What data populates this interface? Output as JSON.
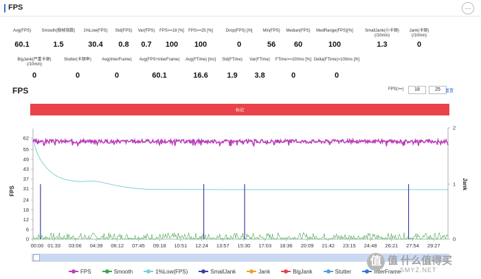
{
  "header": {
    "title": "FPS",
    "menu_icon": "dots-menu-icon"
  },
  "stats_row1": [
    {
      "label": "Avg(FPS)",
      "value": "60.1"
    },
    {
      "label": "Smooth(稳帧指数)",
      "value": "1.5"
    },
    {
      "label": "1%Low(FPS)",
      "value": "30.4"
    },
    {
      "label": "Std(FPS)",
      "value": "0.8"
    },
    {
      "label": "Var(FPS)",
      "value": "0.7"
    },
    {
      "label": "FPS>=18 [%]",
      "value": "100"
    },
    {
      "label": "FPS>=25 [%]",
      "value": "100"
    },
    {
      "label": "Drop(FPS) [/h]",
      "value": "0"
    },
    {
      "label": "Min(FPS)",
      "value": "56"
    },
    {
      "label": "Median(FPS)",
      "value": "60"
    },
    {
      "label": "MedRange(FPS)[%]",
      "value": "100"
    },
    {
      "label": "SmallJank(小卡顿)\n(/10min)",
      "value": "1.3"
    },
    {
      "label": "Jank(卡顿)\n(/10min)",
      "value": "0"
    }
  ],
  "stats_row2": [
    {
      "label": "BigJank(严重卡顿)\n(/10min)",
      "value": "0"
    },
    {
      "label": "Stutter(卡顿率)",
      "value": "0"
    },
    {
      "label": "Avg(InterFrame)",
      "value": "0"
    },
    {
      "label": "Avg(FPS+InterFrame)",
      "value": "60.1"
    },
    {
      "label": "Avg(FTime) [ms]",
      "value": "16.6"
    },
    {
      "label": "Std(FTime)",
      "value": "1.9"
    },
    {
      "label": "Var(FTime)",
      "value": "3.8"
    },
    {
      "label": "FTime>=100ms [%]",
      "value": "0"
    },
    {
      "label": "Delta(FTime)>100ms [/h]",
      "value": "0"
    }
  ],
  "chart_section": {
    "title": "FPS",
    "fps_label": "FPS(>=)",
    "fps_threshold_1": "18",
    "fps_threshold_2": "25",
    "link_label": "重置",
    "bar_label": "标记"
  },
  "chart_data": {
    "type": "line",
    "x_tick_labels": [
      "00:00",
      "01:33",
      "03:06",
      "04:39",
      "06:12",
      "07:45",
      "09:18",
      "10:51",
      "12:24",
      "13:57",
      "15:30",
      "17:03",
      "18:36",
      "20:09",
      "21:42",
      "23:15",
      "24:48",
      "26:21",
      "27:54",
      "29:27"
    ],
    "y_left_ticks": [
      "62",
      "55",
      "49",
      "43",
      "37",
      "31",
      "24",
      "18",
      "12",
      "6",
      "0"
    ],
    "y_left_range": [
      0,
      62
    ],
    "y_left_label": "FPS",
    "y_right_ticks": [
      "2",
      "1",
      "0"
    ],
    "y_right_range": [
      0,
      2
    ],
    "y_right_label": "Jank",
    "x_range_minutes": [
      0,
      30.5
    ],
    "series": [
      {
        "name": "FPS",
        "color": "#b93fb9",
        "approx_level": 60,
        "band": [
          57,
          62
        ]
      },
      {
        "name": "Smooth",
        "color": "#3aa84a",
        "approx_level": 1.5,
        "band": [
          0,
          4
        ]
      },
      {
        "name": "1%Low(FPS)",
        "color": "#7ccfd8",
        "points_minutes": [
          [
            0,
            62
          ],
          [
            0.3,
            52
          ],
          [
            1,
            43
          ],
          [
            2,
            37
          ],
          [
            3.5,
            35
          ],
          [
            4.5,
            36
          ],
          [
            6,
            33
          ],
          [
            7.5,
            31
          ],
          [
            9,
            30.4
          ],
          [
            30.5,
            30.4
          ]
        ]
      },
      {
        "name": "SmallJank",
        "color": "#3c3fa8",
        "events_minutes": [
          0.55,
          12.55,
          15.55,
          27.6
        ],
        "event_value": 1
      },
      {
        "name": "Jank",
        "color": "#f0a030"
      },
      {
        "name": "BigJank",
        "color": "#e8434a"
      },
      {
        "name": "Stutter",
        "color": "#5aa0d8"
      },
      {
        "name": "InterFrame",
        "color": "#3a6fd8"
      }
    ]
  },
  "legend": [
    {
      "name": "FPS",
      "color": "#b93fb9"
    },
    {
      "name": "Smooth",
      "color": "#3aa84a"
    },
    {
      "name": "1%Low(FPS)",
      "color": "#7ccfd8"
    },
    {
      "name": "SmallJank",
      "color": "#3c3fa8"
    },
    {
      "name": "Jank",
      "color": "#f0a030"
    },
    {
      "name": "BigJank",
      "color": "#e8434a"
    },
    {
      "name": "Stutter",
      "color": "#5aa0d8"
    },
    {
      "name": "InterFrame",
      "color": "#3a6fd8"
    }
  ],
  "watermark": {
    "text": "值 什么值得买",
    "sub": "SMYZ.NET",
    "logo": "值"
  }
}
